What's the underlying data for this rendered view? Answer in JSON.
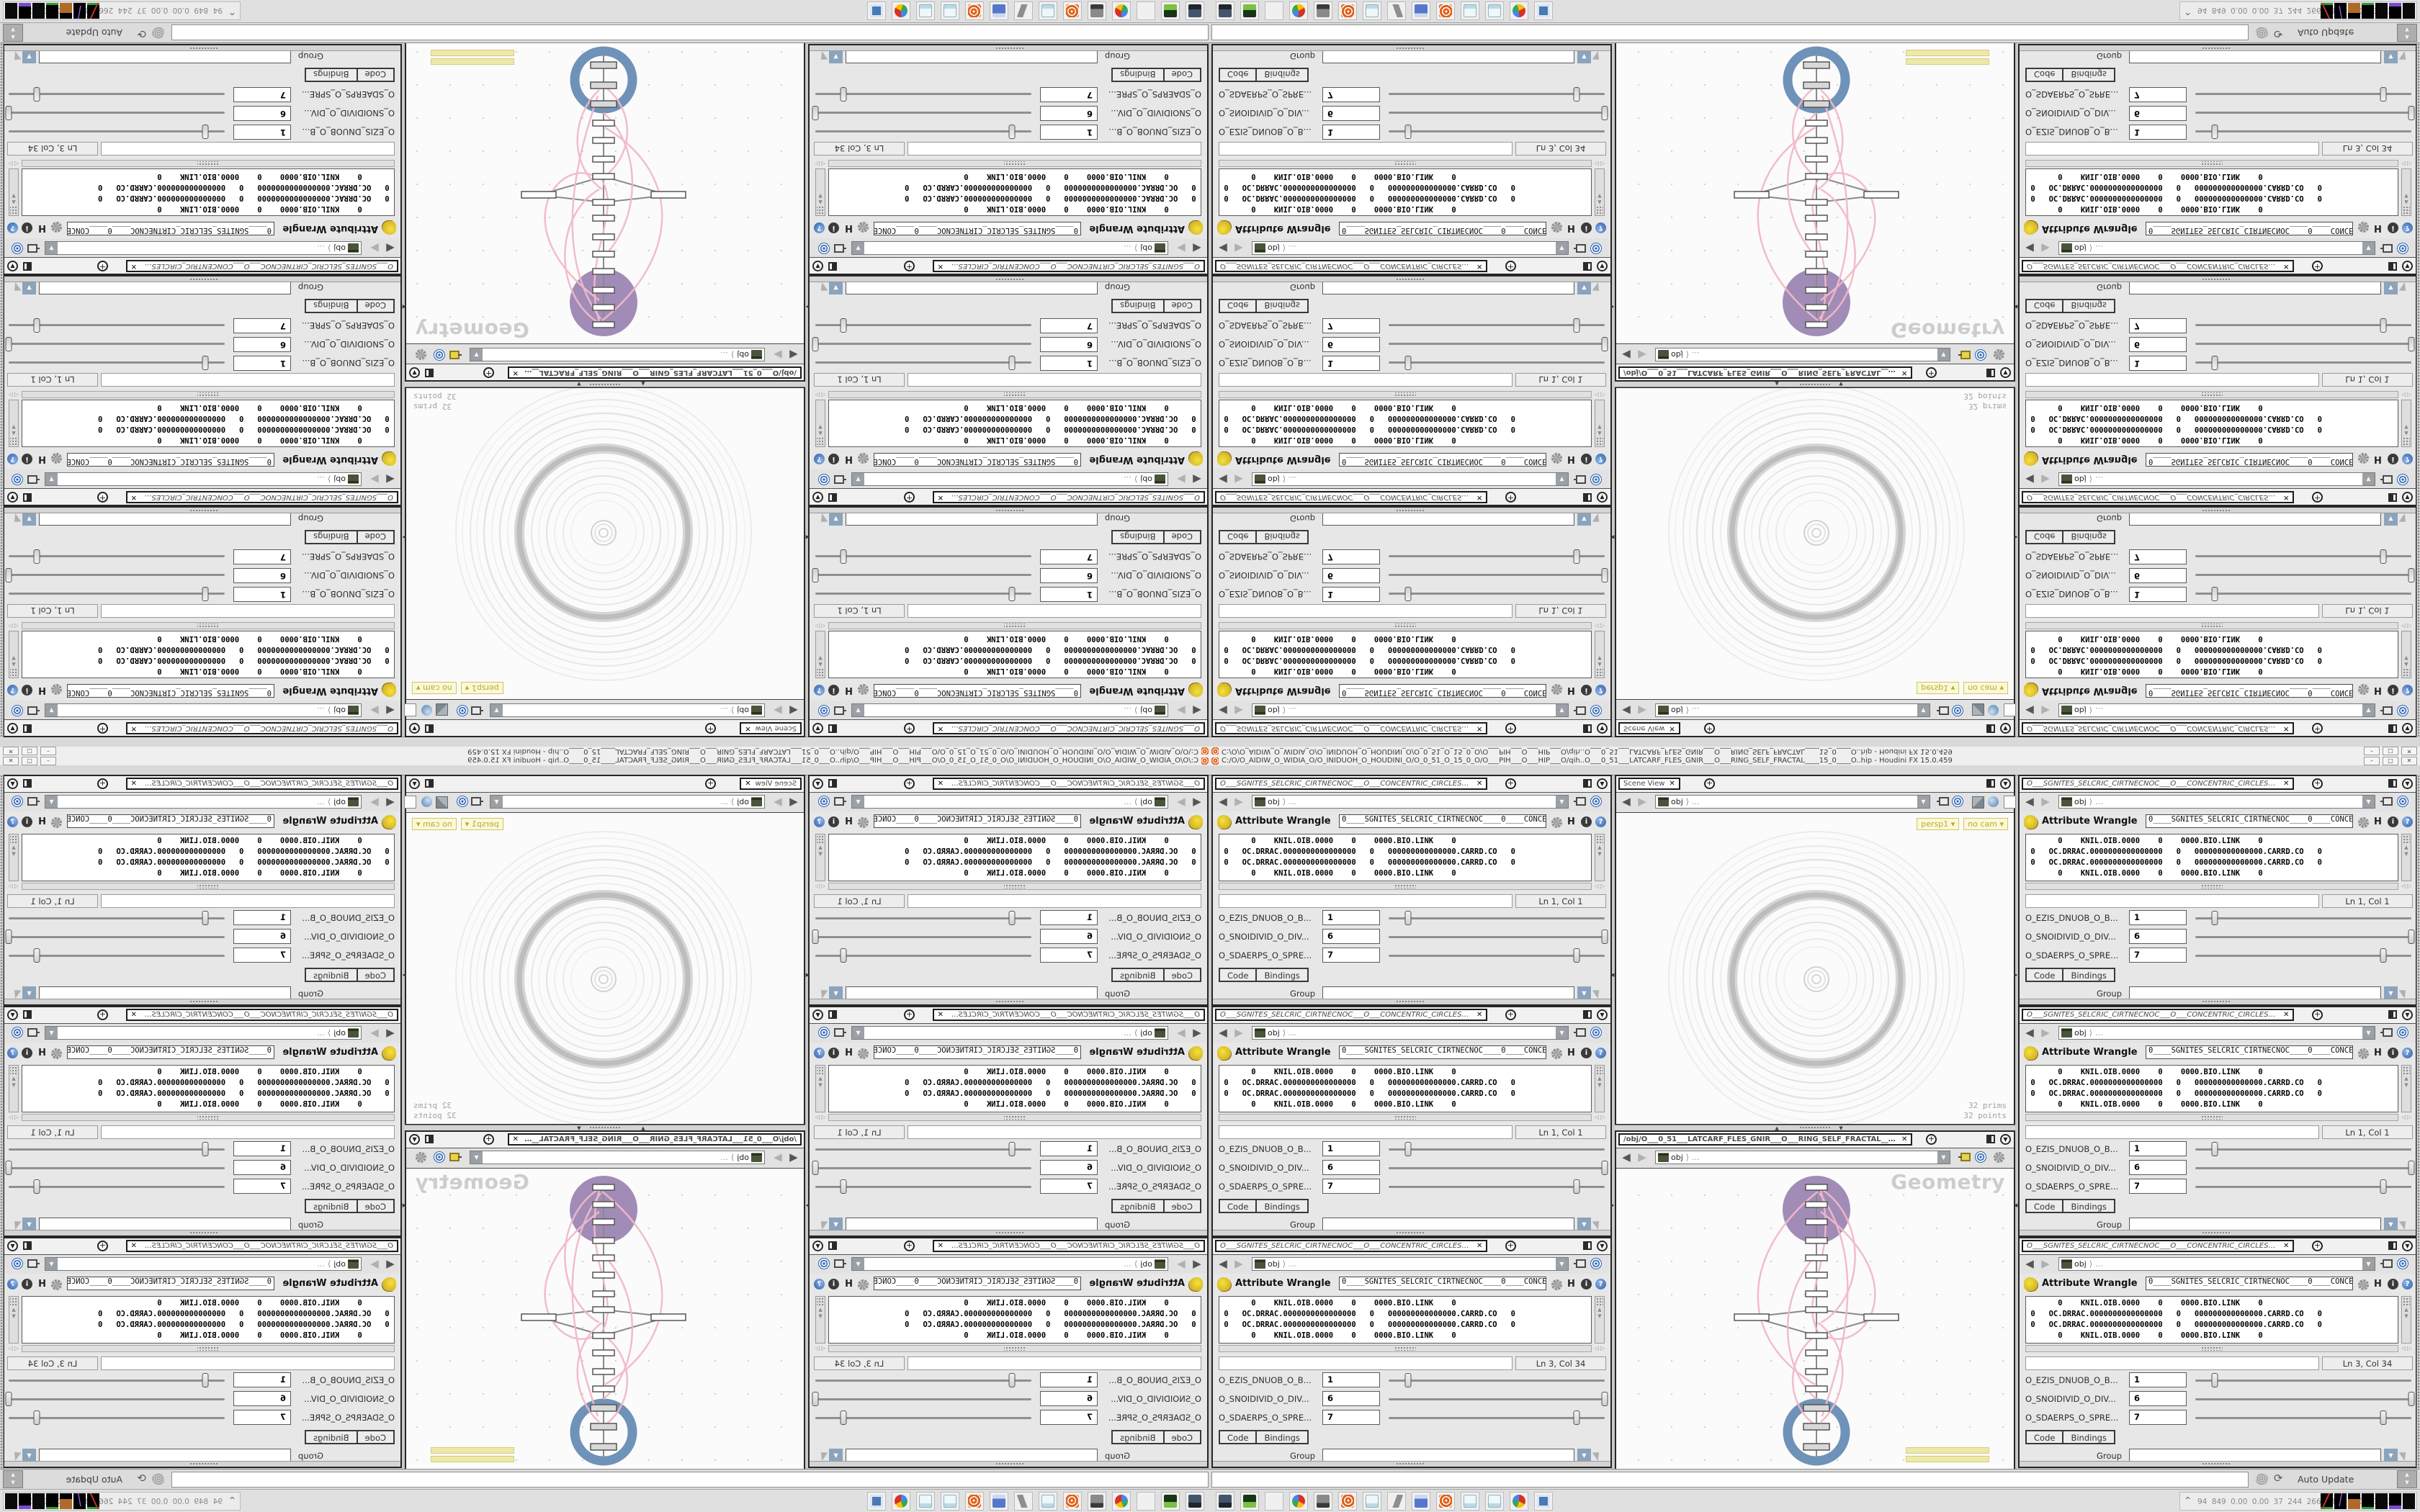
{
  "window": {
    "title": "C:/O/O_AIDIW_O_WIDIA_O/O_INIDUOH_O_HOUDINI_O/O_0_51_O_15_0_O/O___PIH___O___HIP___O/qih..O___0_51___LATCARF_FLES_GNIR___O___RING_SELF_FRACTAL____15_0____O..hip - Houdini FX 15.0.459",
    "minimize_label": "–",
    "restore_label": "□",
    "close_label": "✕"
  },
  "ui": {
    "tab_close": "✕",
    "new_tab": "+",
    "back_arrow": "◀",
    "fwd_arrow": "▶",
    "crumb_sep": "⟩",
    "dropdown_arrow": "▼",
    "up_arrow": "▲",
    "down_arrow": "▼",
    "left_arrow": "◁",
    "right_arrow": "▷",
    "refresh_glyph": "⟳",
    "tray_chevron": "^"
  },
  "parm_pane": {
    "tab_title": "O___SGNITES_SELCRIC_CIRTNECNOC___O___CONCENTRIC_CIRCLES_SETINGS___O",
    "breadcrumb": {
      "root": "obj",
      "more": "..."
    },
    "node_type_label": "Attribute Wrangle",
    "node_name": "0____SGNITES_SELCRIC_CIRTNECNOC____0____CONCENT",
    "h_button": "H",
    "info_glyph": "i",
    "help_glyph": "?",
    "code_lines": [
      "       0    KNIL.OIB.0000    0    0000.BIO.LINK    0",
      " 0   OC.DRRAC.0000000000000000   0   000000000000000.CARRD.CO   0",
      " 0   OC.DRRAC.0000000000000000   0   000000000000000.CARRD.CO   0",
      "       0    KNIL.OIB.0000    0    0000.BIO.LINK    0"
    ],
    "panes": [
      {
        "lncol": "Ln 1, Col 1"
      },
      {
        "lncol": "Ln 1, Col 1"
      },
      {
        "lncol": "Ln 3, Col 34"
      }
    ],
    "params": [
      {
        "label": "O_EZIS_DNUOB_O_B...",
        "value": "1",
        "slider_pct": 9
      },
      {
        "label": "O_SNOIDIVID_O_DIV...",
        "value": "6",
        "slider_pct": 100
      },
      {
        "label": "O_SDAERPS_O_SPRE...",
        "value": "7",
        "slider_pct": 87
      }
    ],
    "code_tab": "Code",
    "bindings_tab": "Bindings",
    "group_label": "Group"
  },
  "viewport": {
    "tab_title": "Scene View",
    "badge_camera": "persp1 ▾",
    "badge_nocam": "no cam ▾",
    "stats_line1": "32  prims",
    "stats_line2": "32 points"
  },
  "network": {
    "tab_title": "/obj/O___0_51___LATCARF_FLES_GNIR___O___RING_SELF_FRACTAL___15_0_...",
    "watermark": "Geometry",
    "colors": {
      "purple_node": "#a18cb7",
      "blue_node": "#6f92b8",
      "wire_pink": "#f2b9c8"
    }
  },
  "statusbar": {
    "update_mode": "Auto Update"
  },
  "taskbar": {
    "icons": [
      "system-monitor",
      "package-green",
      "floppy-64",
      "chrome",
      "display-settings",
      "houdini",
      "notepad",
      "volume",
      "calculator",
      "houdini-2",
      "notepad-2",
      "notepad-3",
      "chrome-2",
      "image-viewer"
    ],
    "floppy_label": "64",
    "tray_numbers": "94  849  0.00 0.00  37  244  266 3344 1204  37  30",
    "tray_graphs": [
      "red-green",
      "purple-spike",
      "orange-block",
      "green-spike",
      "dark",
      "purple-small",
      "dark"
    ]
  }
}
